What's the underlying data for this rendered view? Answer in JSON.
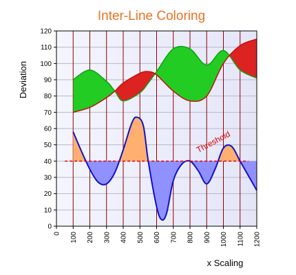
{
  "chart_data": {
    "type": "line",
    "title": "Inter-Line Coloring",
    "xlabel": "x Scaling",
    "ylabel": "Deviation",
    "xlim": [
      0,
      1200
    ],
    "ylim": [
      0,
      120
    ],
    "x_ticks": [
      0,
      100,
      200,
      300,
      400,
      500,
      600,
      700,
      800,
      900,
      1000,
      1100,
      1200
    ],
    "y_ticks": [
      0,
      10,
      20,
      30,
      40,
      50,
      60,
      70,
      80,
      90,
      100,
      110,
      120
    ],
    "grid": true,
    "colors": {
      "title": "#f07020",
      "plot_background": "#eef0fa",
      "grid_horizontal": "#b8b8c8",
      "grid_vertical": "#900000",
      "upper_line": "#10a010",
      "lower_line": "#c01010",
      "upper_above_fill": "#22cc22",
      "lower_above_fill": "#dd2222",
      "wave_line": "#1010cc",
      "wave_above_fill": "#ffb070",
      "wave_below_fill": "#9090ff",
      "threshold": "#dd0000"
    },
    "series": [
      {
        "x": [
          100,
          200,
          300,
          350,
          400,
          500,
          550,
          600,
          700,
          800,
          900,
          1000,
          1100,
          1200
        ],
        "values": [
          90,
          96,
          89,
          83,
          77,
          82,
          88,
          95,
          109,
          109,
          99,
          108,
          96,
          91
        ]
      },
      {
        "x": [
          100,
          200,
          300,
          350,
          400,
          500,
          550,
          600,
          700,
          800,
          900,
          1000,
          1100,
          1200
        ],
        "values": [
          70,
          73,
          79,
          83,
          88,
          94,
          95,
          93,
          83,
          77,
          80,
          100,
          111,
          115
        ]
      },
      {
        "x": [
          100,
          150,
          200,
          250,
          300,
          350,
          400,
          450,
          480,
          520,
          550,
          600,
          630,
          660,
          700,
          750,
          800,
          850,
          900,
          950,
          1000,
          1050,
          1100,
          1150,
          1200
        ],
        "values": [
          58,
          46,
          35,
          27,
          26,
          33,
          47,
          63,
          67,
          62,
          40,
          12,
          4,
          8,
          28,
          38,
          40,
          34,
          26,
          35,
          48,
          49,
          40,
          31,
          22
        ]
      }
    ],
    "threshold": {
      "label": "Threshold",
      "value": 40,
      "x_range": [
        50,
        1150
      ]
    }
  }
}
